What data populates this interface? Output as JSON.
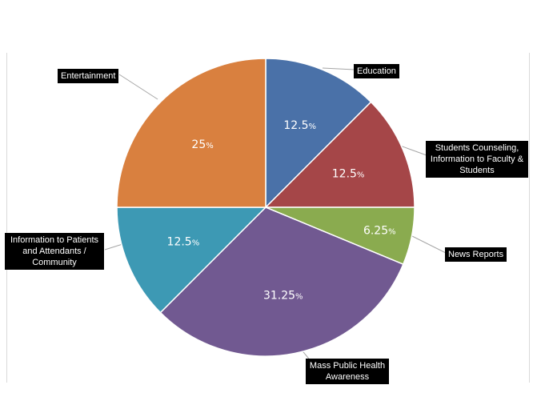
{
  "chart_data": {
    "type": "pie",
    "slices": [
      {
        "label": "Education",
        "value": 12.5,
        "display": "12.5%",
        "color": "#4a71a8"
      },
      {
        "label": "Students Counseling,\nInformation to Faculty &\nStudents",
        "value": 12.5,
        "display": "12.5%",
        "color": "#a54648"
      },
      {
        "label": "News Reports",
        "value": 6.25,
        "display": "6.25%",
        "color": "#8aab4f"
      },
      {
        "label": "Mass Public Health\nAwareness",
        "value": 31.25,
        "display": "31.25%",
        "color": "#715991"
      },
      {
        "label": "Information to Patients\nand Attendants /\nCommunity",
        "value": 12.5,
        "display": "12.5%",
        "color": "#3d99b4"
      },
      {
        "label": "Entertainment",
        "value": 25,
        "display": "25%",
        "color": "#d9803f"
      }
    ]
  }
}
